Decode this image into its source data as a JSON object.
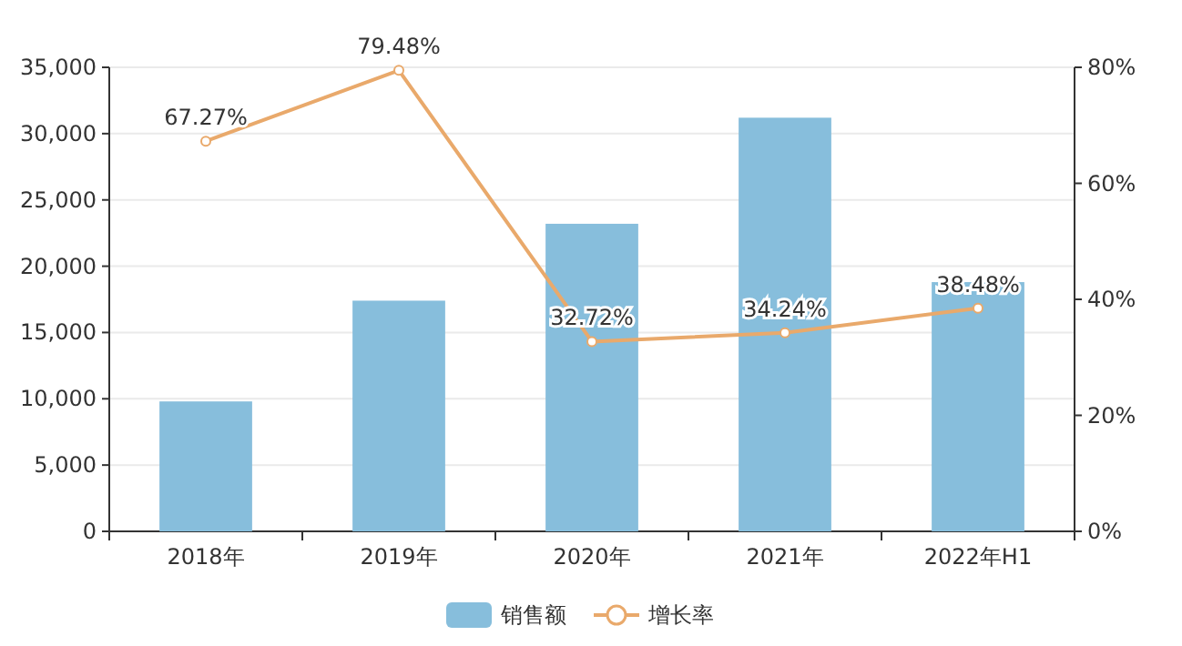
{
  "chart_data": {
    "type": "bar",
    "categories": [
      "2018年",
      "2019年",
      "2020年",
      "2021年",
      "2022年H1"
    ],
    "series": [
      {
        "name": "销售额",
        "color": "#87bedc",
        "values": [
          9800,
          17400,
          23200,
          31200,
          18800
        ]
      },
      {
        "name": "增长率",
        "type": "line",
        "axis": "y2",
        "color": "#e9a96b",
        "values": [
          67.27,
          79.48,
          32.72,
          34.24,
          38.48
        ],
        "value_labels": [
          "67.27%",
          "79.48%",
          "32.72%",
          "34.24%",
          "38.48%"
        ]
      }
    ],
    "ylim": [
      0,
      35000
    ],
    "yticks": [
      {
        "value": 0,
        "label": "0"
      },
      {
        "value": 5000,
        "label": "5,000"
      },
      {
        "value": 10000,
        "label": "10,000"
      },
      {
        "value": 15000,
        "label": "15,000"
      },
      {
        "value": 20000,
        "label": "20,000"
      },
      {
        "value": 25000,
        "label": "25,000"
      },
      {
        "value": 30000,
        "label": "30,000"
      },
      {
        "value": 35000,
        "label": "35,000"
      }
    ],
    "y2lim": [
      0,
      80
    ],
    "y2ticks": [
      {
        "value": 0,
        "label": "0%"
      },
      {
        "value": 20,
        "label": "20%"
      },
      {
        "value": 40,
        "label": "40%"
      },
      {
        "value": 60,
        "label": "60%"
      },
      {
        "value": 80,
        "label": "80%"
      }
    ],
    "grid": "y",
    "legend": "bottom",
    "marker": "circle"
  }
}
